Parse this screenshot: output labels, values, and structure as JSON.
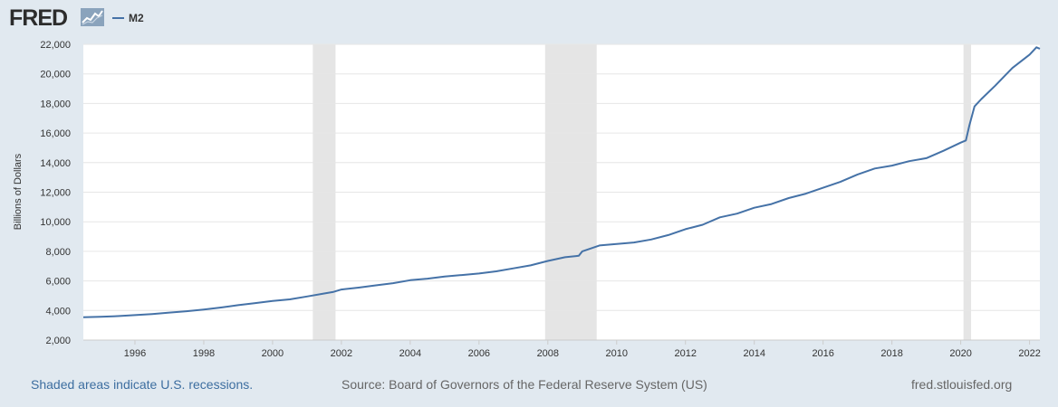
{
  "header": {
    "logo_text": "FRED",
    "logo_mark": "trend-chart-icon",
    "series_label": "M2"
  },
  "colors": {
    "series": "#4572a7",
    "recession": "#e5e5e5",
    "background": "#e1e9f0",
    "plot": "#ffffff",
    "grid": "#e6e6e6"
  },
  "footer": {
    "note": "Shaded areas indicate U.S. recessions.",
    "source": "Source: Board of Governors of the Federal Reserve System (US)",
    "url": "fred.stlouisfed.org"
  },
  "chart_data": {
    "type": "line",
    "title": "",
    "xlabel": "",
    "ylabel": "Billions of Dollars",
    "xlim": [
      1994.5,
      2022.3
    ],
    "ylim": [
      2000,
      22000
    ],
    "y_ticks": [
      2000,
      4000,
      6000,
      8000,
      10000,
      12000,
      14000,
      16000,
      18000,
      20000,
      22000
    ],
    "y_tick_labels": [
      "2,000",
      "4,000",
      "6,000",
      "8,000",
      "10,000",
      "12,000",
      "14,000",
      "16,000",
      "18,000",
      "20,000",
      "22,000"
    ],
    "x_ticks": [
      1996,
      1998,
      2000,
      2002,
      2004,
      2006,
      2008,
      2010,
      2012,
      2014,
      2016,
      2018,
      2020,
      2022
    ],
    "x_tick_labels": [
      "1996",
      "1998",
      "2000",
      "2002",
      "2004",
      "2006",
      "2008",
      "2010",
      "2012",
      "2014",
      "2016",
      "2018",
      "2020",
      "2022"
    ],
    "grid": true,
    "legend": "top-left",
    "recessions": [
      [
        2001.17,
        2001.83
      ],
      [
        2007.92,
        2009.42
      ],
      [
        2020.08,
        2020.3
      ]
    ],
    "series": [
      {
        "name": "M2",
        "x": [
          1994.5,
          1995.0,
          1995.5,
          1996.0,
          1996.5,
          1997.0,
          1997.5,
          1998.0,
          1998.5,
          1999.0,
          1999.5,
          2000.0,
          2000.5,
          2001.0,
          2001.5,
          2001.75,
          2002.0,
          2002.5,
          2003.0,
          2003.5,
          2004.0,
          2004.5,
          2005.0,
          2005.5,
          2006.0,
          2006.5,
          2007.0,
          2007.5,
          2008.0,
          2008.5,
          2008.9,
          2009.0,
          2009.5,
          2010.0,
          2010.5,
          2011.0,
          2011.5,
          2012.0,
          2012.5,
          2013.0,
          2013.5,
          2014.0,
          2014.5,
          2015.0,
          2015.5,
          2016.0,
          2016.5,
          2017.0,
          2017.5,
          2018.0,
          2018.5,
          2019.0,
          2019.5,
          2020.0,
          2020.15,
          2020.25,
          2020.4,
          2020.6,
          2021.0,
          2021.5,
          2022.0,
          2022.2,
          2022.3
        ],
        "values": [
          3550,
          3570,
          3620,
          3690,
          3760,
          3860,
          3950,
          4070,
          4200,
          4360,
          4500,
          4640,
          4750,
          4950,
          5150,
          5250,
          5420,
          5550,
          5700,
          5850,
          6050,
          6150,
          6300,
          6400,
          6500,
          6650,
          6850,
          7050,
          7350,
          7600,
          7700,
          8000,
          8400,
          8500,
          8600,
          8800,
          9100,
          9500,
          9800,
          10300,
          10550,
          10950,
          11200,
          11600,
          11900,
          12300,
          12700,
          13200,
          13600,
          13800,
          14100,
          14300,
          14800,
          15350,
          15500,
          16500,
          17800,
          18300,
          19200,
          20400,
          21300,
          21800,
          21700
        ]
      }
    ]
  }
}
